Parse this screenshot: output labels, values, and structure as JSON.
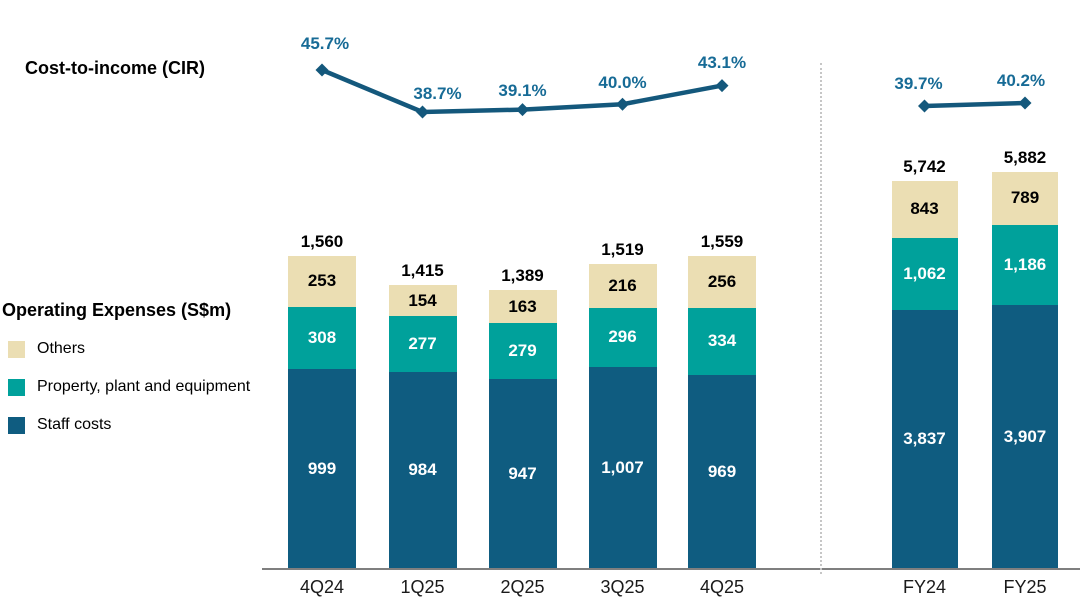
{
  "labels": {
    "cir_title": "Cost-to-income (CIR)",
    "opex_title": "Operating Expenses (S$m)"
  },
  "legend": {
    "items": [
      {
        "label": "Others",
        "color": "#EBDEB3"
      },
      {
        "label": "Property, plant and equipment",
        "color": "#00A19B"
      },
      {
        "label": "Staff costs",
        "color": "#0F5C80"
      }
    ]
  },
  "colors": {
    "others": "#EBDEB3",
    "ppe": "#00A19B",
    "staff": "#0F5C80",
    "cir_line": "#14587C",
    "cir_value_label": "#176B96",
    "total_label": "#000000",
    "segment_label_on_others": "#000000",
    "segment_label_on_dark": "#FFFFFF",
    "axis_line": "#7F7F7F",
    "axis_label": "#1A1A1A",
    "divider": "#C6C6C6",
    "background": "#FFFFFF"
  },
  "chart_data": {
    "type": "bar",
    "subtype": "stacked-bar-with-line-overlay",
    "title": "Operating Expenses (S$m) and Cost-to-income (CIR)",
    "bar_unit": "S$m",
    "line_name": "Cost-to-income (CIR)",
    "line_unit": "%",
    "legend_position": "left",
    "grid": false,
    "stack_order_top_to_bottom": [
      "Others",
      "Property, plant and equipment",
      "Staff costs"
    ],
    "groups": [
      {
        "name": "quarterly",
        "categories": [
          "4Q24",
          "1Q25",
          "2Q25",
          "3Q25",
          "4Q25"
        ],
        "totals": [
          1560,
          1415,
          1389,
          1519,
          1559
        ],
        "series": [
          {
            "name": "Others",
            "values": [
              253,
              154,
              163,
              216,
              256
            ]
          },
          {
            "name": "Property, plant and equipment",
            "values": [
              308,
              277,
              279,
              296,
              334
            ]
          },
          {
            "name": "Staff costs",
            "values": [
              999,
              984,
              947,
              1007,
              969
            ]
          }
        ],
        "cir_percent": [
          45.7,
          38.7,
          39.1,
          40.0,
          43.1
        ]
      },
      {
        "name": "full-year",
        "categories": [
          "FY24",
          "FY25"
        ],
        "totals": [
          5742,
          5882
        ],
        "series": [
          {
            "name": "Others",
            "values": [
              843,
              789
            ]
          },
          {
            "name": "Property, plant and equipment",
            "values": [
              1062,
              1186
            ]
          },
          {
            "name": "Staff costs",
            "values": [
              3837,
              3907
            ]
          }
        ],
        "cir_percent": [
          39.7,
          40.2
        ]
      }
    ]
  }
}
